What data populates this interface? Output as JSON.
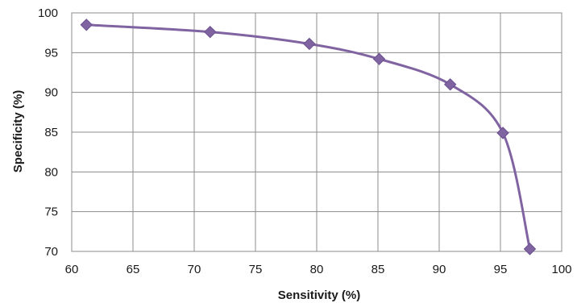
{
  "chart_data": {
    "type": "line",
    "title": "",
    "xlabel": "Sensitivity (%)",
    "ylabel": "Specificity (%)",
    "xlim": [
      60,
      100
    ],
    "ylim": [
      70,
      100
    ],
    "x_ticks": [
      60,
      65,
      70,
      75,
      80,
      85,
      90,
      95,
      100
    ],
    "y_ticks": [
      70,
      75,
      80,
      85,
      90,
      95,
      100
    ],
    "grid": true,
    "legend": "none",
    "series": [
      {
        "color": "#8064a2",
        "marker": "diamond",
        "x": [
          61.2,
          71.3,
          79.4,
          85.1,
          90.9,
          95.2,
          97.4
        ],
        "y": [
          98.5,
          97.6,
          96.1,
          94.2,
          91.0,
          84.9,
          70.3
        ]
      }
    ]
  }
}
